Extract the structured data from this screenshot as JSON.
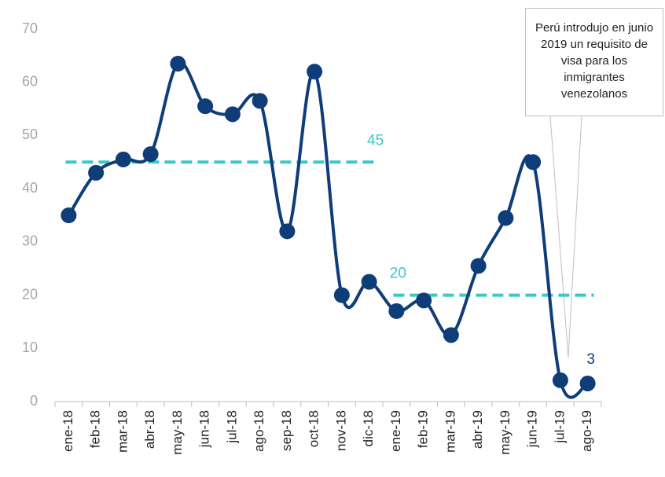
{
  "chart_data": {
    "type": "line",
    "categories": [
      "ene-18",
      "feb-18",
      "mar-18",
      "abr-18",
      "may-18",
      "jun-18",
      "jul-18",
      "ago-18",
      "sep-18",
      "oct-18",
      "nov-18",
      "dic-18",
      "ene-19",
      "feb-19",
      "mar-19",
      "abr-19",
      "may-19",
      "jun-19",
      "jul-19",
      "ago-19"
    ],
    "series": [
      {
        "color": "#0e3d78",
        "values": [
          35,
          43,
          45.5,
          46.5,
          63.5,
          55.5,
          54,
          56.5,
          32,
          62,
          20,
          22.5,
          17,
          19,
          12.5,
          25.5,
          34.5,
          45,
          4,
          3.4
        ],
        "value_labels": [
          null,
          null,
          null,
          null,
          null,
          null,
          null,
          null,
          null,
          null,
          null,
          null,
          null,
          null,
          null,
          null,
          null,
          null,
          null,
          "3"
        ]
      }
    ],
    "reference_lines": [
      {
        "value": 45,
        "from": "ene-18",
        "to": "dic-18",
        "color": "#3cc8c8"
      },
      {
        "value": 20,
        "from": "ene-19",
        "to": "ago-19",
        "color": "#3cc8c8"
      }
    ],
    "annotation": "Perú introdujo en junio 2019 un requisito de visa para los inmigrantes venezolanos",
    "annotation_target": "jul-19",
    "ylim": [
      0,
      70
    ],
    "yticks": [
      0,
      10,
      20,
      30,
      40,
      50,
      60,
      70
    ],
    "grid": false
  }
}
